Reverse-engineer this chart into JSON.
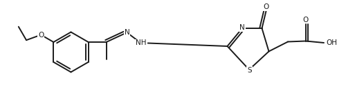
{
  "background_color": "#ffffff",
  "line_color": "#1a1a1a",
  "line_width": 1.4,
  "font_size": 7.5,
  "fig_width": 5.0,
  "fig_height": 1.58,
  "dpi": 100,
  "xlim": [
    0,
    10
  ],
  "ylim": [
    0,
    3.16
  ]
}
